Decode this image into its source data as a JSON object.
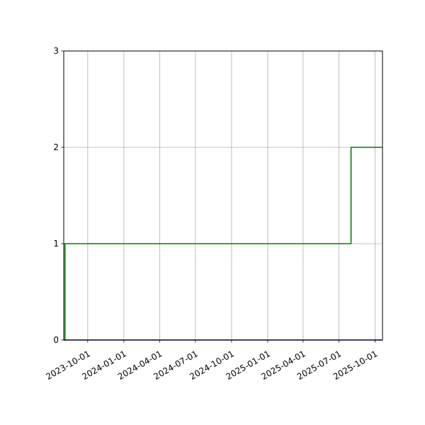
{
  "chart_data": {
    "type": "line",
    "step": true,
    "grid": true,
    "title": "",
    "xlabel": "",
    "ylabel": "",
    "xlim": [
      "2023-08-01",
      "2025-10-20"
    ],
    "ylim": [
      0,
      3
    ],
    "x_ticks": [
      "2023-10-01",
      "2024-01-01",
      "2024-04-01",
      "2024-07-01",
      "2024-10-01",
      "2025-01-01",
      "2025-04-01",
      "2025-07-01",
      "2025-10-01"
    ],
    "y_ticks": [
      0,
      1,
      2,
      3
    ],
    "series": [
      {
        "color": "#00007f",
        "points": [
          {
            "x": "2023-08-01",
            "y": 0
          },
          {
            "x": "2025-10-20",
            "y": 0
          }
        ]
      },
      {
        "color": "#008000",
        "points": [
          {
            "x": "2023-08-01",
            "y": 0
          },
          {
            "x": "2023-08-04",
            "y": 1
          },
          {
            "x": "2025-08-01",
            "y": 2
          },
          {
            "x": "2025-10-20",
            "y": 2
          }
        ]
      }
    ]
  }
}
